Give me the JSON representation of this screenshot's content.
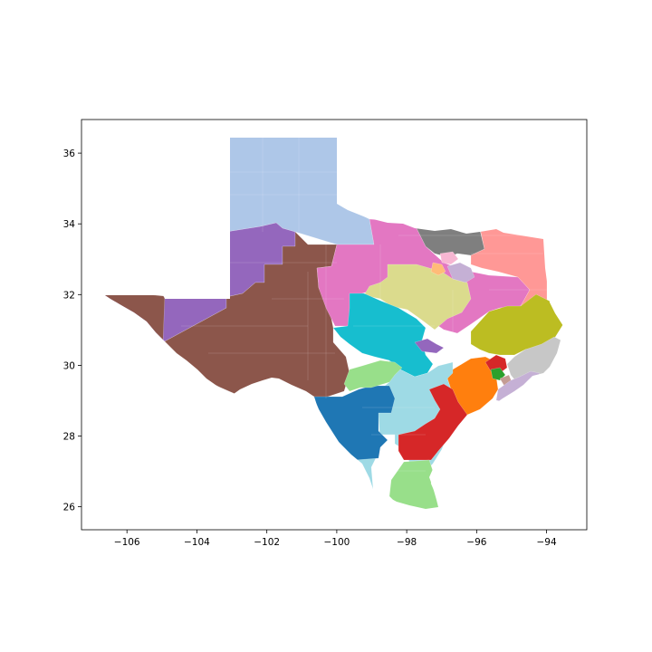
{
  "map": {
    "type": "choropleth",
    "xlim": [
      -107.3,
      -92.85
    ],
    "ylim": [
      25.35,
      36.95
    ],
    "x_ticks": [
      -106,
      -104,
      -102,
      -100,
      -98,
      -96,
      -94
    ],
    "y_ticks": [
      26,
      28,
      30,
      32,
      34,
      36
    ],
    "x_tick_labels": [
      "−106",
      "−104",
      "−102",
      "−100",
      "−98",
      "−96",
      "−94"
    ],
    "y_tick_labels": [
      "26",
      "28",
      "30",
      "32",
      "34",
      "36"
    ],
    "grid": false,
    "palette": {
      "panhandle": "#aec7e8",
      "west_brown": "#8c564b",
      "west_purple": "#9467bd",
      "north_pink": "#e377c2",
      "north_gray": "#7f7f7f",
      "northeast_salmon": "#ff9896",
      "central_olive": "#dbdb8d",
      "central_cyan": "#17becf",
      "east_olive": "#bcbd22",
      "southeast_silver": "#c7c7c7",
      "gulf_orange": "#ff7f0e",
      "south_lightblue": "#9edae5",
      "southwest_blue": "#1f77b4",
      "coastal_red": "#d62728",
      "valley_green": "#98df8a",
      "metro_lavender": "#c5b0d5",
      "metro_teal": "#9edae5",
      "metro_tan": "#c49c94",
      "metro_orange": "#ffbb78",
      "metro_pink": "#f7b6d2",
      "metro_green": "#2ca02c"
    }
  }
}
